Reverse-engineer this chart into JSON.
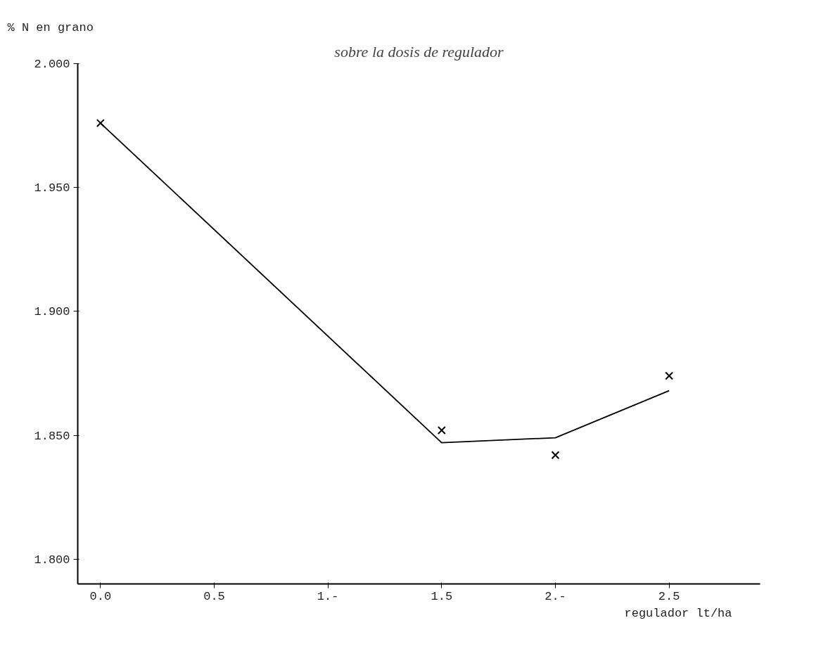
{
  "chart_data": {
    "type": "line",
    "title": "sobre la dosis de regulador",
    "xlabel": "regulador lt/ha",
    "ylabel": "% N en grano",
    "x": [
      0.0,
      1.5,
      2.0,
      2.5
    ],
    "series": [
      {
        "color": "#000000",
        "marker": "none",
        "values": [
          1.976,
          1.847,
          1.849,
          1.868
        ]
      },
      {
        "type": "scatter",
        "color": "#000000",
        "marker": "cross",
        "values": [
          1.976,
          1.852,
          1.842,
          1.874
        ]
      }
    ],
    "xlim": [
      -0.1,
      2.9
    ],
    "ylim": [
      1.79,
      2.0
    ],
    "xticks": [
      {
        "value": 0,
        "label": "0.0"
      },
      {
        "value": 0.5,
        "label": "0.5"
      },
      {
        "value": 1,
        "label": "1.-"
      },
      {
        "value": 1.5,
        "label": "1.5"
      },
      {
        "value": 2,
        "label": "2.-"
      },
      {
        "value": 2.5,
        "label": "2.5"
      }
    ],
    "yticks": [
      {
        "value": 1.8,
        "label": "1.800"
      },
      {
        "value": 1.85,
        "label": "1.850"
      },
      {
        "value": 1.9,
        "label": "1.900"
      },
      {
        "value": 1.95,
        "label": "1.950"
      },
      {
        "value": 2.0,
        "label": "2.000"
      }
    ],
    "grid": false
  }
}
